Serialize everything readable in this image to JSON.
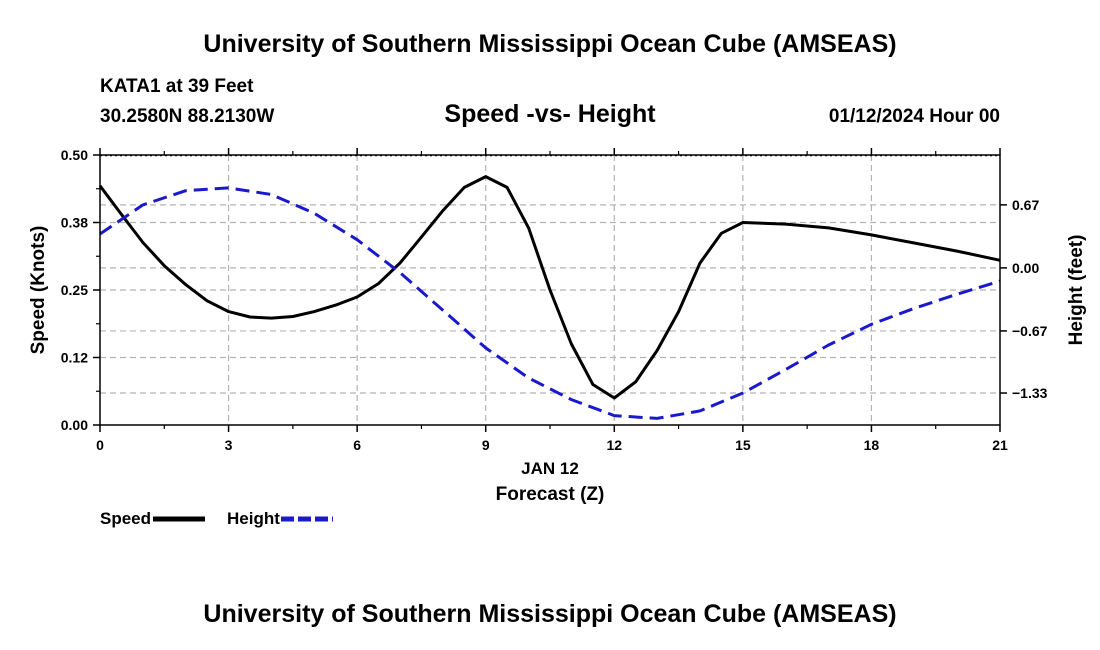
{
  "page": {
    "title_top": "University of Southern Mississippi Ocean Cube (AMSEAS)",
    "title_bottom": "University of Southern Mississippi Ocean Cube (AMSEAS)",
    "station": "KATA1 at 39 Feet",
    "coords": "30.2580N  88.2130W",
    "datetime": "01/12/2024 Hour 00"
  },
  "colors": {
    "speed": "#000000",
    "height": "#1a1acc",
    "grid": "#b3b3b3"
  },
  "chart_data": {
    "type": "line",
    "title": "Speed -vs- Height",
    "xlabel": "Forecast (Z)",
    "xlabel_date": "JAN 12",
    "ylabel": "Speed (Knots)",
    "y2label": "Height (feet)",
    "xlim": [
      0,
      21
    ],
    "ylim": [
      0,
      0.5
    ],
    "y2lim": [
      -1.67,
      1.2
    ],
    "x_ticks": [
      0,
      3,
      6,
      9,
      12,
      15,
      18,
      21
    ],
    "x_tick_labels": [
      "0",
      "3",
      "6",
      "9",
      "12",
      "15",
      "18",
      "21"
    ],
    "y_ticks": [
      0,
      0.125,
      0.25,
      0.375,
      0.5
    ],
    "y_tick_labels": [
      "0.00",
      "0.12",
      "0.25",
      "0.38",
      "0.50"
    ],
    "y2_ticks": [
      0.67,
      0,
      -0.67,
      -1.33
    ],
    "y2_tick_labels": [
      "0.67",
      "0.00",
      "−0.67",
      "−1.33"
    ],
    "grid": true,
    "legend": [
      {
        "label": "Speed",
        "series": "speed"
      },
      {
        "label": "Height",
        "series": "height"
      }
    ],
    "series": [
      {
        "name": "Speed",
        "axis": "left",
        "style": "solid",
        "x": [
          0,
          0.5,
          1,
          1.5,
          2,
          2.5,
          3,
          3.5,
          4,
          4.5,
          5,
          5.5,
          6,
          6.5,
          7,
          7.5,
          8,
          8.5,
          9,
          9.5,
          10,
          10.5,
          11,
          11.5,
          12,
          12.5,
          13,
          13.5,
          14,
          14.5,
          15,
          16,
          17,
          18,
          19,
          20,
          21
        ],
        "values": [
          0.443,
          0.39,
          0.338,
          0.295,
          0.26,
          0.23,
          0.21,
          0.2,
          0.198,
          0.201,
          0.21,
          0.222,
          0.237,
          0.262,
          0.3,
          0.348,
          0.397,
          0.44,
          0.46,
          0.44,
          0.365,
          0.25,
          0.15,
          0.075,
          0.05,
          0.08,
          0.138,
          0.21,
          0.3,
          0.355,
          0.375,
          0.372,
          0.365,
          0.352,
          0.337,
          0.322,
          0.305
        ]
      },
      {
        "name": "Height",
        "axis": "right",
        "style": "dashed",
        "x": [
          0,
          1,
          2,
          3,
          4,
          5,
          6,
          7,
          8,
          9,
          10,
          11,
          12,
          13,
          14,
          15,
          16,
          17,
          18,
          19,
          20,
          21
        ],
        "values": [
          0.36,
          0.67,
          0.82,
          0.85,
          0.78,
          0.58,
          0.3,
          -0.05,
          -0.45,
          -0.85,
          -1.17,
          -1.4,
          -1.57,
          -1.6,
          -1.52,
          -1.33,
          -1.08,
          -0.82,
          -0.6,
          -0.43,
          -0.28,
          -0.14
        ]
      }
    ]
  }
}
